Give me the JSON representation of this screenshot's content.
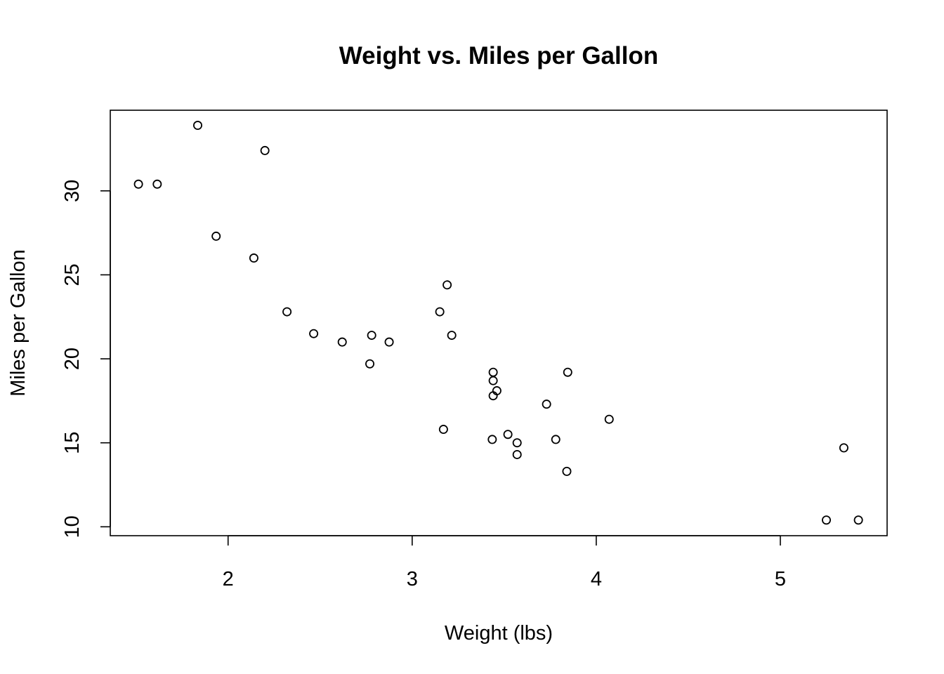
{
  "chart_data": {
    "type": "scatter",
    "title": "Weight vs. Miles per Gallon",
    "xlabel": "Weight (lbs)",
    "ylabel": "Miles per Gallon",
    "xlim": [
      1.36,
      5.58
    ],
    "ylim": [
      9.47,
      34.8
    ],
    "xticks": [
      2,
      3,
      4,
      5
    ],
    "yticks": [
      10,
      15,
      20,
      25,
      30
    ],
    "grid": false,
    "legend": "none",
    "marker": "open-circle",
    "colors": {
      "marker": "#000000",
      "axis": "#000000",
      "background": "#ffffff"
    },
    "series": [
      {
        "x": [
          2.62,
          2.875,
          2.32,
          3.215,
          3.44,
          3.46,
          3.57,
          3.19,
          3.15,
          3.44,
          3.44,
          4.07,
          3.73,
          3.78,
          5.25,
          5.424,
          5.345,
          2.2,
          1.615,
          1.835,
          2.465,
          3.52,
          3.435,
          3.84,
          3.845,
          1.935,
          2.14,
          1.513,
          3.17,
          2.77,
          3.57,
          2.78
        ],
        "y": [
          21.0,
          21.0,
          22.8,
          21.4,
          18.7,
          18.1,
          14.3,
          24.4,
          22.8,
          19.2,
          17.8,
          16.4,
          17.3,
          15.2,
          10.4,
          10.4,
          14.7,
          32.4,
          30.4,
          33.9,
          21.5,
          15.5,
          15.2,
          13.3,
          19.2,
          27.3,
          26.0,
          30.4,
          15.8,
          19.7,
          15.0,
          21.4
        ]
      }
    ]
  }
}
